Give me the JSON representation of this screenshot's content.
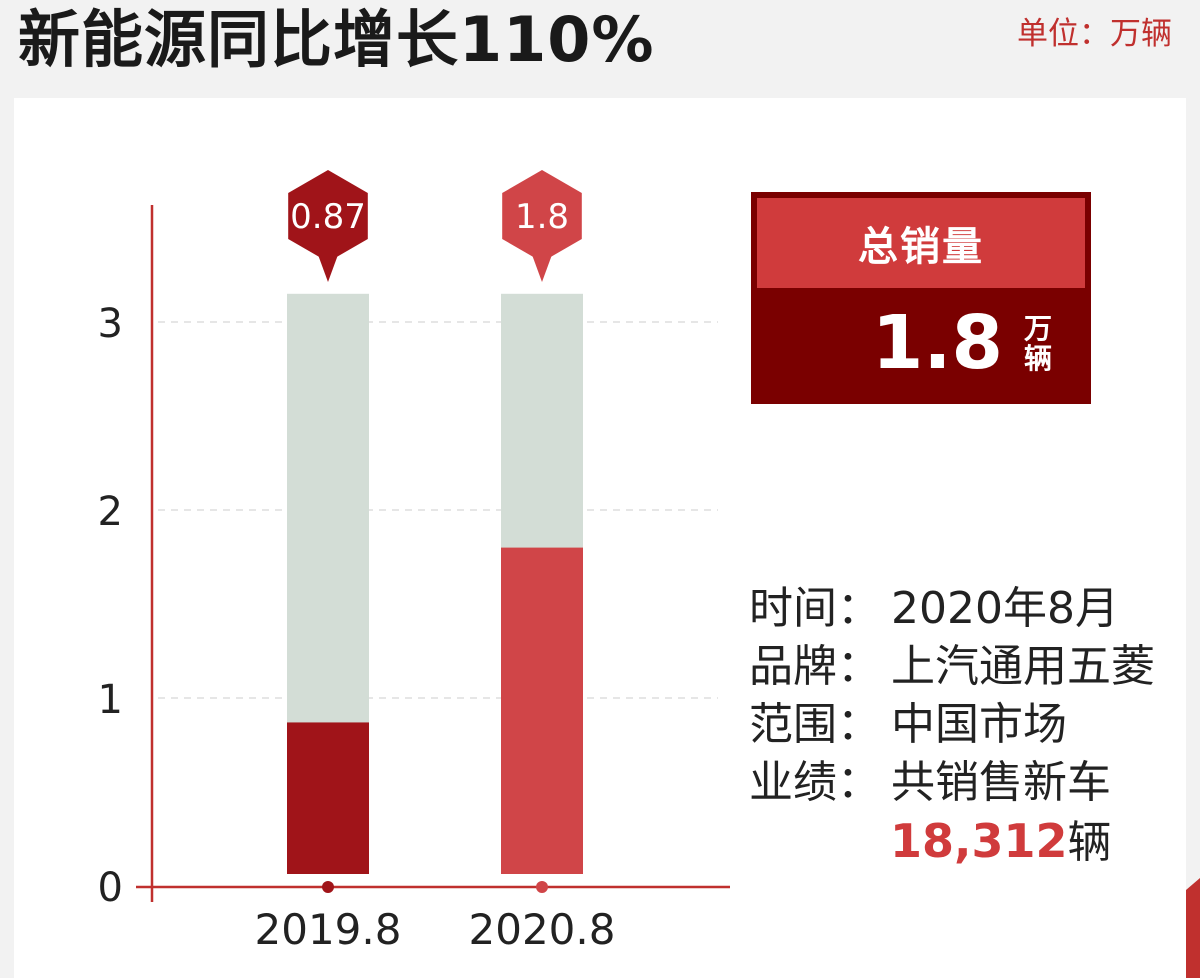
{
  "header": {
    "title": "新能源同比增长110%",
    "unit": "单位：万辆"
  },
  "chart_data": {
    "type": "bar",
    "categories": [
      "2019.8",
      "2020.8"
    ],
    "values": [
      0.87,
      1.8
    ],
    "value_labels": [
      "0.87",
      "1.8"
    ],
    "background_max": 3.15,
    "ylim": [
      0,
      3
    ],
    "yticks": [
      0,
      1,
      2,
      3
    ],
    "ytick_labels": [
      "0",
      "1",
      "2",
      "3"
    ],
    "grid": true,
    "colors": {
      "bars": [
        "#a01419",
        "#d04548"
      ],
      "background_bar": "#d3ddd6",
      "axis": "#c0302e",
      "grid": "#dddddd"
    }
  },
  "summary": {
    "heading": "总销量",
    "value": "1.8",
    "unit_line1": "万",
    "unit_line2": "辆"
  },
  "info": {
    "rows": [
      {
        "key": "时间：",
        "value": "2020年8月"
      },
      {
        "key": "品牌：",
        "value": "上汽通用五菱"
      },
      {
        "key": "范围：",
        "value": "中国市场"
      },
      {
        "key": "业绩：",
        "value": "共销售新车"
      }
    ],
    "sales_number": "18,312",
    "sales_unit": "辆"
  },
  "colors": {
    "accent": "#c0302e",
    "dark_red": "#7a0000",
    "mid_red": "#d03b3c"
  }
}
